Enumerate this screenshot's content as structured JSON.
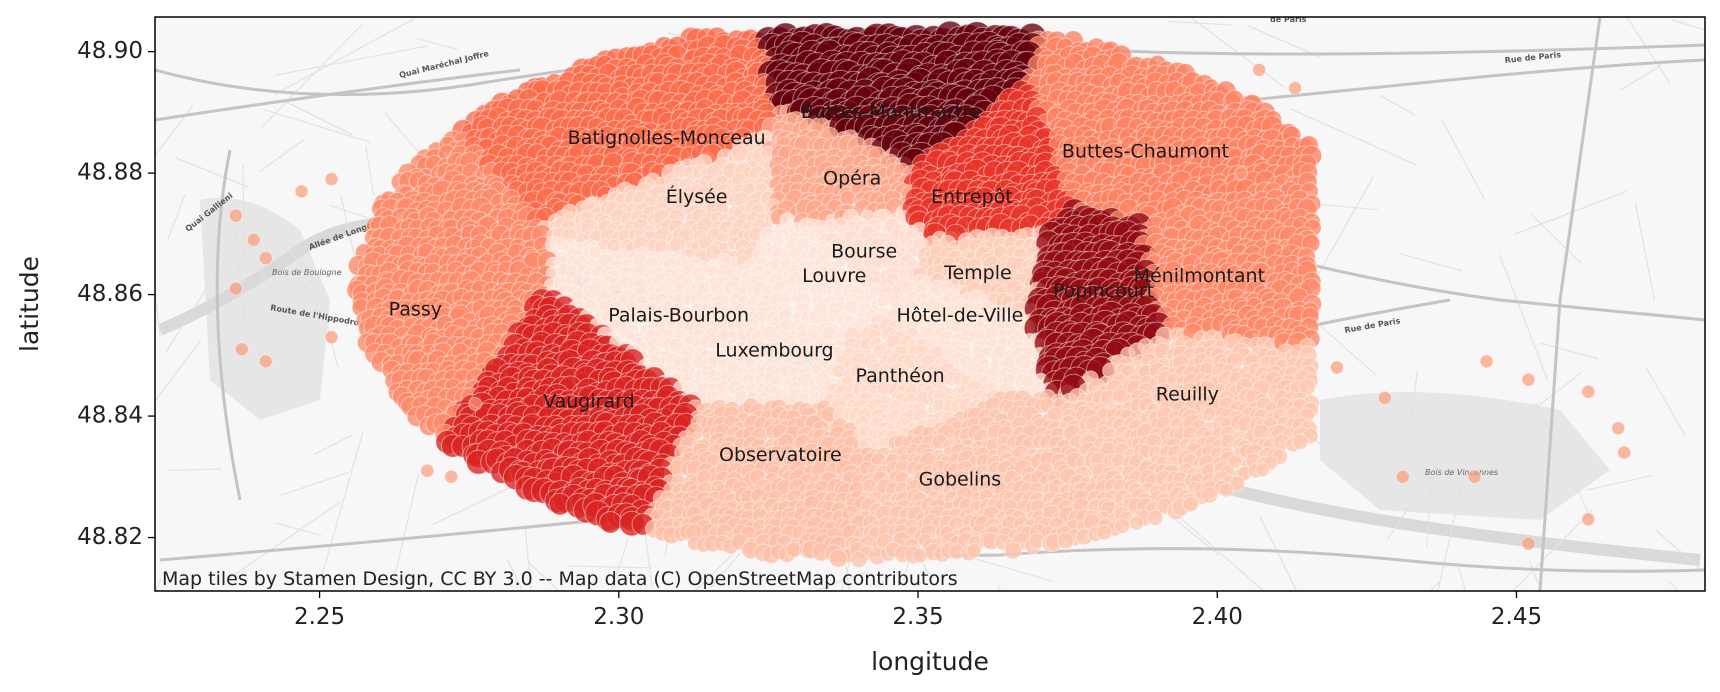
{
  "chart_data": {
    "type": "scatter",
    "title": "",
    "xlabel": "longitude",
    "ylabel": "latitude",
    "xlim": [
      2.2225,
      2.4815
    ],
    "ylim": [
      48.8112,
      48.9057
    ],
    "x_ticks": [
      "2.25",
      "2.30",
      "2.35",
      "2.40",
      "2.45"
    ],
    "y_ticks": [
      "48.82",
      "48.84",
      "48.86",
      "48.88",
      "48.90"
    ],
    "colormap": "Reds",
    "grid": false,
    "legend": "none",
    "districts": [
      {
        "name": "Louvre",
        "lon": 2.336,
        "lat": 48.863,
        "level": 0.02
      },
      {
        "name": "Bourse",
        "lon": 2.341,
        "lat": 48.867,
        "level": 0.06
      },
      {
        "name": "Temple",
        "lon": 2.36,
        "lat": 48.8635,
        "level": 0.12
      },
      {
        "name": "Hôtel-de-Ville",
        "lon": 2.357,
        "lat": 48.8565,
        "level": 0.04
      },
      {
        "name": "Panthéon",
        "lon": 2.347,
        "lat": 48.8465,
        "level": 0.08
      },
      {
        "name": "Luxembourg",
        "lon": 2.326,
        "lat": 48.8507,
        "level": 0.03
      },
      {
        "name": "Palais-Bourbon",
        "lon": 2.31,
        "lat": 48.8565,
        "level": 0.03
      },
      {
        "name": "Élysée",
        "lon": 2.313,
        "lat": 48.876,
        "level": 0.1
      },
      {
        "name": "Opéra",
        "lon": 2.339,
        "lat": 48.879,
        "level": 0.25
      },
      {
        "name": "Entrepôt",
        "lon": 2.359,
        "lat": 48.876,
        "level": 0.62
      },
      {
        "name": "Popincourt",
        "lon": 2.381,
        "lat": 48.8605,
        "level": 0.9
      },
      {
        "name": "Reuilly",
        "lon": 2.395,
        "lat": 48.8435,
        "level": 0.14
      },
      {
        "name": "Gobelins",
        "lon": 2.357,
        "lat": 48.8295,
        "level": 0.15
      },
      {
        "name": "Observatoire",
        "lon": 2.327,
        "lat": 48.8335,
        "level": 0.17
      },
      {
        "name": "Vaugirard",
        "lon": 2.295,
        "lat": 48.8423,
        "level": 0.68
      },
      {
        "name": "Passy",
        "lon": 2.266,
        "lat": 48.8575,
        "level": 0.35
      },
      {
        "name": "Batignolles-Monceau",
        "lon": 2.308,
        "lat": 48.8857,
        "level": 0.45
      },
      {
        "name": "Buttes-Montmartre",
        "lon": 2.3455,
        "lat": 48.89,
        "level": 1.0
      },
      {
        "name": "Buttes-Chaumont",
        "lon": 2.388,
        "lat": 48.8835,
        "level": 0.38
      },
      {
        "name": "Ménilmontant",
        "lon": 2.397,
        "lat": 48.863,
        "level": 0.35
      }
    ]
  },
  "attribution": "Map tiles by Stamen Design, CC BY 3.0 -- Map data (C) OpenStreetMap contributors",
  "basemap_labels": {
    "street_1": "Quai Maréchal Joffre",
    "street_2": "Quai Gallieni",
    "street_3": "Allée de Longchamp",
    "street_4": "Route de l'Hippodrome",
    "street_5": "Rue de Paris",
    "street_6": "Rue de Paris",
    "street_7": "de Paris",
    "park_1": "Bois de Boulogne",
    "park_2": "Bois de Vincennes"
  },
  "colors": {
    "frame": "#000000",
    "basemap_bg": "#f7f7f7",
    "road_major": "#c4c4c4",
    "road_minor": "#e2e2e2",
    "park": "#e6e6e6",
    "water": "#d9d9d9"
  }
}
